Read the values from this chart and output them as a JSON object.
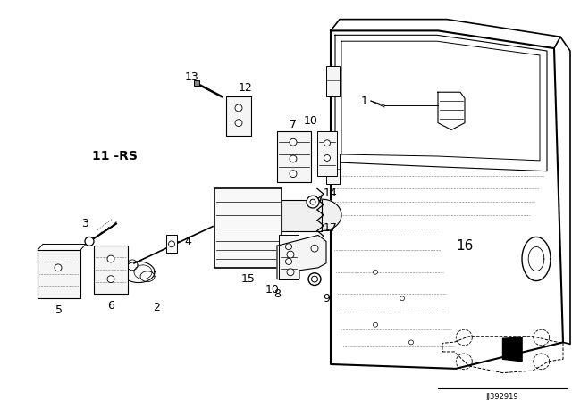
{
  "bg_color": "#ffffff",
  "text_color": "#000000",
  "line_color": "#000000",
  "diagram_code": "JJ392919",
  "fig_w": 6.4,
  "fig_h": 4.48,
  "dpi": 100
}
